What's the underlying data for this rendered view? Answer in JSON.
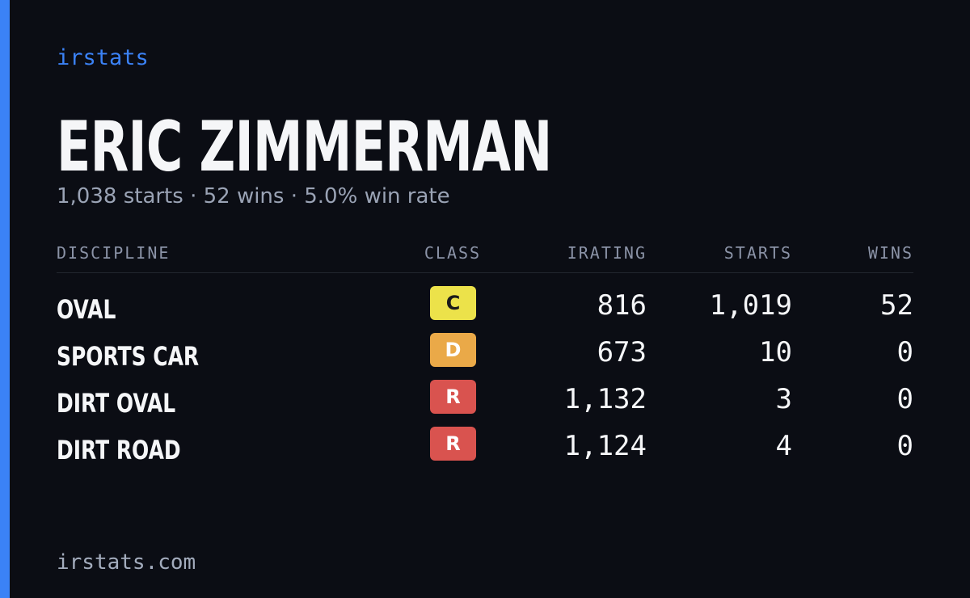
{
  "brand": "irstats",
  "header": {
    "title": "ERIC ZIMMERMAN",
    "subtitle": "1,038 starts · 52 wins · 5.0% win rate"
  },
  "table": {
    "columns": [
      "DISCIPLINE",
      "CLASS",
      "IRATING",
      "STARTS",
      "WINS"
    ],
    "rows": [
      {
        "discipline": "OVAL",
        "class": "C",
        "class_color": "#ece24a",
        "class_text_color": "#1a1a1a",
        "irating": "816",
        "starts": "1,019",
        "wins": "52"
      },
      {
        "discipline": "SPORTS CAR",
        "class": "D",
        "class_color": "#eaa948",
        "class_text_color": "#ffffff",
        "irating": "673",
        "starts": "10",
        "wins": "0"
      },
      {
        "discipline": "DIRT OVAL",
        "class": "R",
        "class_color": "#d9534f",
        "class_text_color": "#ffffff",
        "irating": "1,132",
        "starts": "3",
        "wins": "0"
      },
      {
        "discipline": "DIRT ROAD",
        "class": "R",
        "class_color": "#d9534f",
        "class_text_color": "#ffffff",
        "irating": "1,124",
        "starts": "4",
        "wins": "0"
      }
    ]
  },
  "footer": "irstats.com"
}
